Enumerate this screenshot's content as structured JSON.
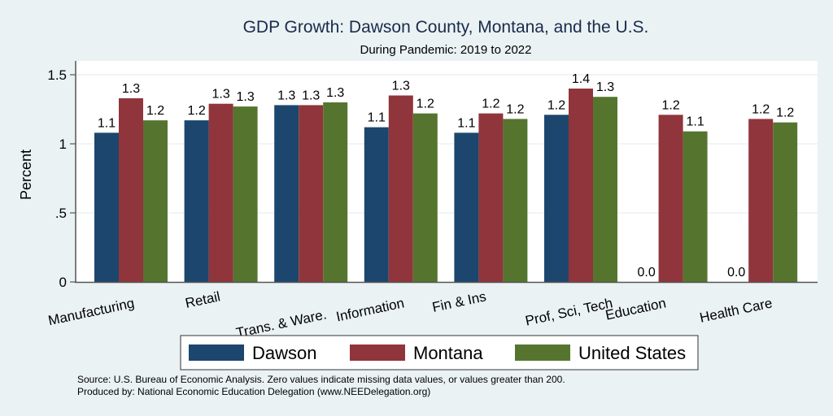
{
  "chart_data": {
    "type": "bar",
    "title": "GDP Growth: Dawson County, Montana, and the U.S.",
    "subtitle": "During Pandemic: 2019 to 2022",
    "xlabel": "",
    "ylabel": "Percent",
    "ylim": [
      0,
      1.6
    ],
    "yticks": [
      0,
      0.5,
      1,
      1.5
    ],
    "ytick_labels": [
      "0",
      ".5",
      "1",
      "1.5"
    ],
    "grid": true,
    "categories": [
      "Manufacturing",
      "Retail",
      "Trans. & Ware.",
      "Information",
      "Fin & Ins",
      "Prof, Sci, Tech",
      "Education",
      "Health Care"
    ],
    "series": [
      {
        "name": "Dawson",
        "color": "#1c466d",
        "values": [
          1.08,
          1.17,
          1.28,
          1.12,
          1.08,
          1.21,
          0.0,
          0.0
        ],
        "labels": [
          "1.1",
          "1.2",
          "1.3",
          "1.1",
          "1.1",
          "1.2",
          "0.0",
          "0.0"
        ]
      },
      {
        "name": "Montana",
        "color": "#90353b",
        "values": [
          1.33,
          1.29,
          1.28,
          1.35,
          1.22,
          1.4,
          1.21,
          1.18
        ],
        "labels": [
          "1.3",
          "1.3",
          "1.3",
          "1.3",
          "1.2",
          "1.4",
          "1.2",
          "1.2"
        ]
      },
      {
        "name": "United States",
        "color": "#55752f",
        "values": [
          1.17,
          1.27,
          1.3,
          1.22,
          1.18,
          1.34,
          1.09,
          1.155
        ],
        "labels": [
          "1.2",
          "1.3",
          "1.3",
          "1.2",
          "1.2",
          "1.3",
          "1.1",
          "1.2"
        ]
      }
    ],
    "legend_position": "bottom",
    "footer": [
      "Source: U.S. Bureau of Economic Analysis. Zero values indicate missing data values, or values greater than 200.",
      "Produced by: National Economic Education Delegation (www.NEEDelegation.org)"
    ]
  }
}
